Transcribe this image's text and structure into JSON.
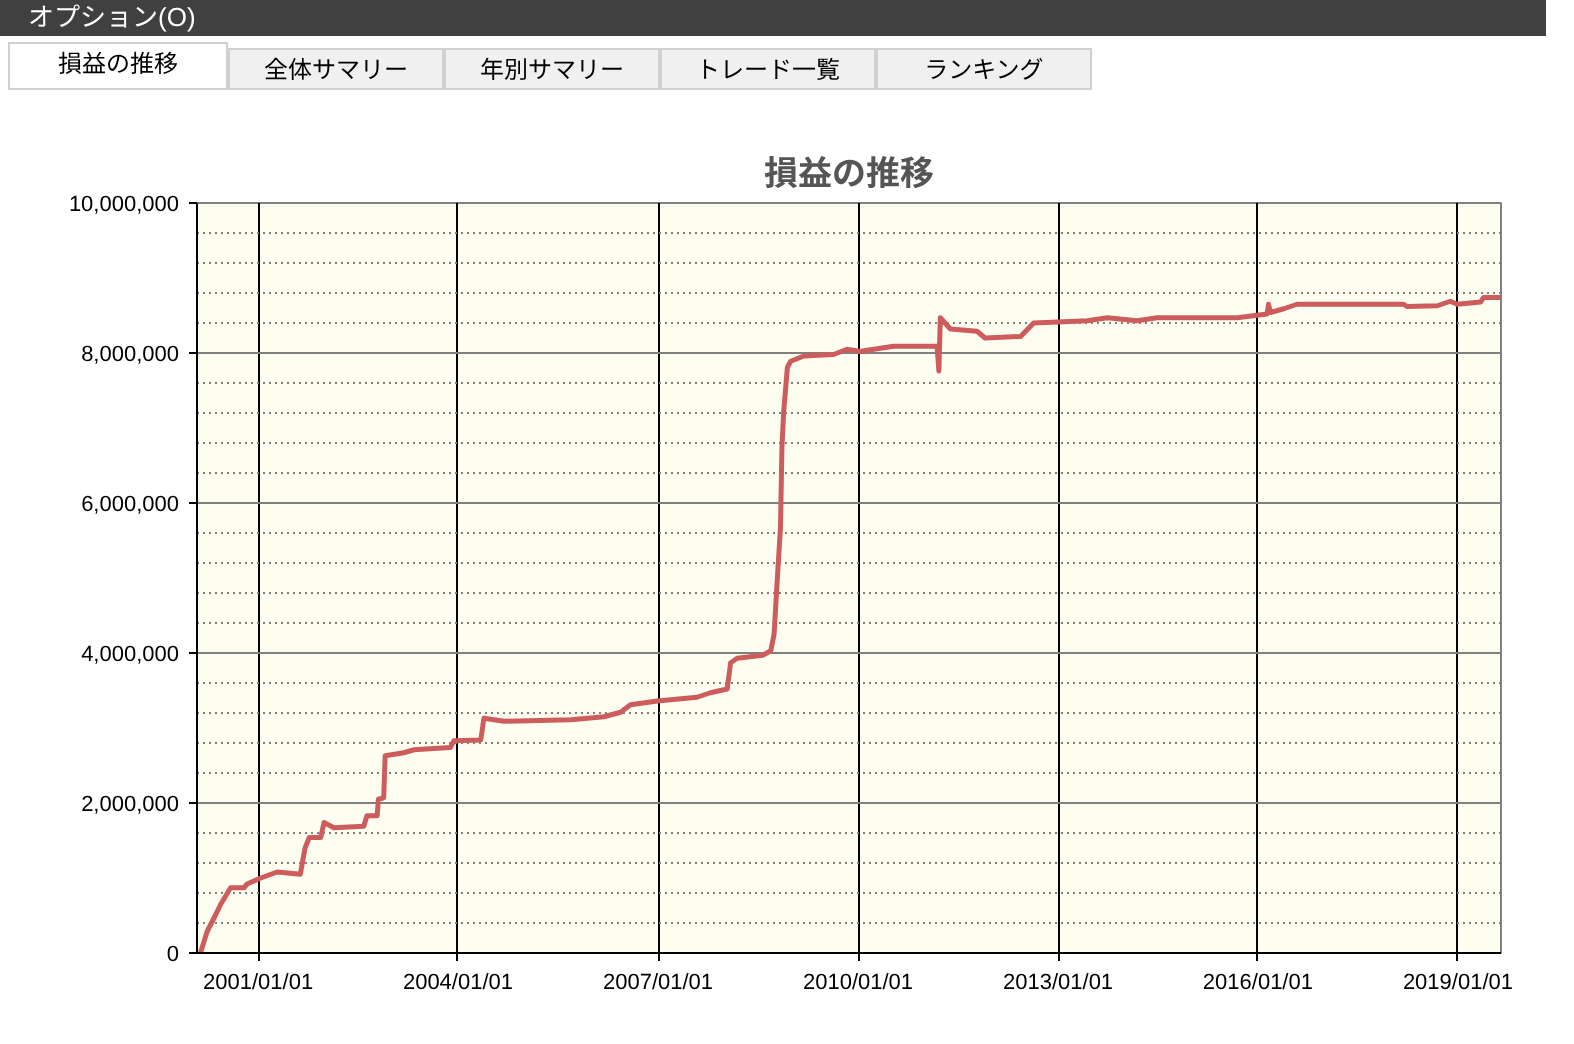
{
  "chart_data": {
    "type": "line",
    "title": "損益の推移",
    "annotations": [
      "オプション(O)",
      "損益の推移",
      "全体サマリー",
      "年別サマリー",
      "トレード一覧",
      "ランキング"
    ],
    "xlim": [
      "2000-02-01",
      "2019-08-25"
    ],
    "xticks": [
      {
        "value": "2001-01-01",
        "label": "2001/01/01"
      },
      {
        "value": "2004-01-01",
        "label": "2004/01/01"
      },
      {
        "value": "2007-01-01",
        "label": "2007/01/01"
      },
      {
        "value": "2010-01-01",
        "label": "2010/01/01"
      },
      {
        "value": "2013-01-01",
        "label": "2013/01/01"
      },
      {
        "value": "2016-01-01",
        "label": "2016/01/01"
      },
      {
        "value": "2019-01-01",
        "label": "2019/01/01"
      }
    ],
    "ylim": [
      0,
      10000000
    ],
    "yticks": [
      {
        "value": 0,
        "label": "0"
      },
      {
        "value": 2000000,
        "label": "2,000,000"
      },
      {
        "value": 4000000,
        "label": "4,000,000"
      },
      {
        "value": 6000000,
        "label": "6,000,000"
      },
      {
        "value": 8000000,
        "label": "8,000,000"
      },
      {
        "value": 10000000,
        "label": "10,000,000"
      }
    ],
    "grid": true,
    "series": [
      {
        "color": "#cd5c5c",
        "x": [
          "2000-02-20",
          "2000-03-28",
          "2000-05-05",
          "2000-06-10",
          "2000-08-03",
          "2000-10-15",
          "2000-11-02",
          "2001-01-15",
          "2001-04-15",
          "2001-08-20",
          "2001-09-15",
          "2001-10-08",
          "2001-12-10",
          "2001-12-28",
          "2002-02-20",
          "2002-08-03",
          "2002-08-20",
          "2002-10-15",
          "2002-10-22",
          "2002-11-20",
          "2002-11-28",
          "2003-03-10",
          "2003-05-05",
          "2003-11-20",
          "2003-12-10",
          "2004-05-05",
          "2004-05-22",
          "2004-09-10",
          "2005-09-10",
          "2006-03-10",
          "2006-06-10",
          "2006-08-03",
          "2006-12-28",
          "2007-08-03",
          "2007-10-15",
          "2008-01-15",
          "2008-02-03",
          "2008-03-10",
          "2008-07-28",
          "2008-09-10",
          "2008-09-28",
          "2008-10-15",
          "2008-11-02",
          "2008-11-10",
          "2008-11-20",
          "2008-12-10",
          "2008-12-28",
          "2009-03-10",
          "2009-08-20",
          "2009-11-02",
          "2010-01-15",
          "2010-02-03",
          "2010-07-15",
          "2011-03-10",
          "2011-03-20",
          "2011-03-28",
          "2011-05-22",
          "2011-10-15",
          "2011-11-28",
          "2012-06-10",
          "2012-08-20",
          "2013-06-10",
          "2013-09-28",
          "2014-03-10",
          "2014-06-28",
          "2015-09-10",
          "2016-02-20",
          "2016-02-28",
          "2016-03-10",
          "2016-05-22",
          "2016-08-03",
          "2018-03-10",
          "2018-03-28",
          "2018-09-10",
          "2018-11-20",
          "2018-12-28",
          "2019-05-05",
          "2019-05-22",
          "2019-08-22"
        ],
        "values": [
          0,
          290000,
          470000,
          650000,
          870000,
          870000,
          920000,
          1000000,
          1080000,
          1050000,
          1400000,
          1540000,
          1540000,
          1740000,
          1670000,
          1690000,
          1830000,
          1830000,
          2050000,
          2070000,
          2630000,
          2670000,
          2710000,
          2740000,
          2830000,
          2840000,
          3130000,
          3090000,
          3110000,
          3150000,
          3210000,
          3310000,
          3360000,
          3410000,
          3470000,
          3520000,
          3870000,
          3930000,
          3970000,
          4030000,
          4250000,
          4960000,
          5670000,
          6740000,
          7230000,
          7810000,
          7890000,
          7960000,
          7980000,
          8050000,
          8020000,
          8030000,
          8090000,
          8090000,
          7760000,
          8470000,
          8320000,
          8290000,
          8200000,
          8220000,
          8400000,
          8430000,
          8470000,
          8430000,
          8470000,
          8470000,
          8520000,
          8650000,
          8540000,
          8590000,
          8650000,
          8650000,
          8620000,
          8630000,
          8690000,
          8650000,
          8680000,
          8740000,
          8740000
        ]
      }
    ]
  }
}
